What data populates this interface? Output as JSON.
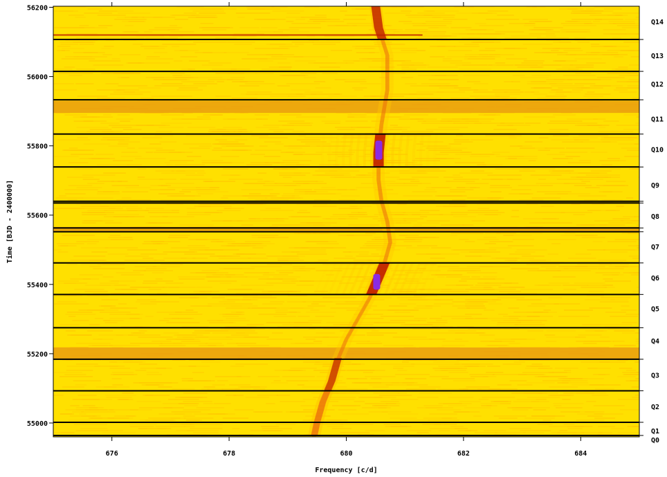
{
  "chart_data": {
    "type": "heatmap",
    "title": "",
    "xlabel": "Frequency [c/d]",
    "ylabel": "Time [BJD - 2400000]",
    "xlim": [
      675.0,
      685.0
    ],
    "ylim": [
      54960,
      56203
    ],
    "x_ticks": [
      676,
      678,
      680,
      682,
      684
    ],
    "x_tick_labels": [
      "676",
      "678",
      "680",
      "682",
      "684"
    ],
    "y_ticks": [
      55000,
      55200,
      55400,
      55600,
      55800,
      56000,
      56200
    ],
    "y_tick_labels": [
      "55000",
      "55200",
      "55400",
      "55600",
      "55800",
      "56000",
      "56200"
    ],
    "quarter_boundaries": [
      54964,
      55002,
      55093,
      55184,
      55275,
      55371,
      55462,
      55552,
      55563,
      55635,
      55640,
      55739,
      55834,
      55933,
      56015,
      56107
    ],
    "quarters": [
      {
        "label": "Q0",
        "time": 54950
      },
      {
        "label": "Q1",
        "time": 54978
      },
      {
        "label": "Q2",
        "time": 55048
      },
      {
        "label": "Q3",
        "time": 55139
      },
      {
        "label": "Q4",
        "time": 55238
      },
      {
        "label": "Q5",
        "time": 55331
      },
      {
        "label": "Q6",
        "time": 55420
      },
      {
        "label": "Q7",
        "time": 55510
      },
      {
        "label": "Q8",
        "time": 55597
      },
      {
        "label": "Q9",
        "time": 55687
      },
      {
        "label": "Q10",
        "time": 55790
      },
      {
        "label": "Q11",
        "time": 55878
      },
      {
        "label": "Q12",
        "time": 55979
      },
      {
        "label": "Q13",
        "time": 56061
      },
      {
        "label": "Q14",
        "time": 56159
      }
    ],
    "ridge": [
      {
        "t": 54960,
        "f": 679.45
      },
      {
        "t": 55000,
        "f": 679.5
      },
      {
        "t": 55060,
        "f": 679.6
      },
      {
        "t": 55120,
        "f": 679.75
      },
      {
        "t": 55180,
        "f": 679.85
      },
      {
        "t": 55240,
        "f": 680.0
      },
      {
        "t": 55300,
        "f": 680.2
      },
      {
        "t": 55360,
        "f": 680.4
      },
      {
        "t": 55400,
        "f": 680.5
      },
      {
        "t": 55460,
        "f": 680.65
      },
      {
        "t": 55520,
        "f": 680.75
      },
      {
        "t": 55580,
        "f": 680.7
      },
      {
        "t": 55640,
        "f": 680.6
      },
      {
        "t": 55700,
        "f": 680.55
      },
      {
        "t": 55780,
        "f": 680.55
      },
      {
        "t": 55860,
        "f": 680.6
      },
      {
        "t": 55960,
        "f": 680.7
      },
      {
        "t": 56060,
        "f": 680.7
      },
      {
        "t": 56140,
        "f": 680.55
      },
      {
        "t": 56203,
        "f": 680.5
      }
    ],
    "strong_segments": [
      {
        "t0": 55370,
        "t1": 55462,
        "intensity": 1.0
      },
      {
        "t0": 55739,
        "t1": 55834,
        "intensity": 1.0
      },
      {
        "t0": 56107,
        "t1": 56203,
        "intensity": 0.8
      },
      {
        "t0": 55093,
        "t1": 55184,
        "intensity": 0.6
      },
      {
        "t0": 54964,
        "t1": 55093,
        "intensity": 0.5
      }
    ],
    "orange_bands": [
      {
        "t0": 55185,
        "t1": 55218
      },
      {
        "t0": 55552,
        "t1": 55566
      },
      {
        "t0": 55895,
        "t1": 55930
      }
    ],
    "colors": {
      "background": "#ffe000",
      "weak": "#ffc800",
      "medium": "#e86010",
      "strong": "#c02000",
      "peak": "#8a2be2",
      "band": "#e89a10",
      "boundary": "#000000"
    }
  }
}
